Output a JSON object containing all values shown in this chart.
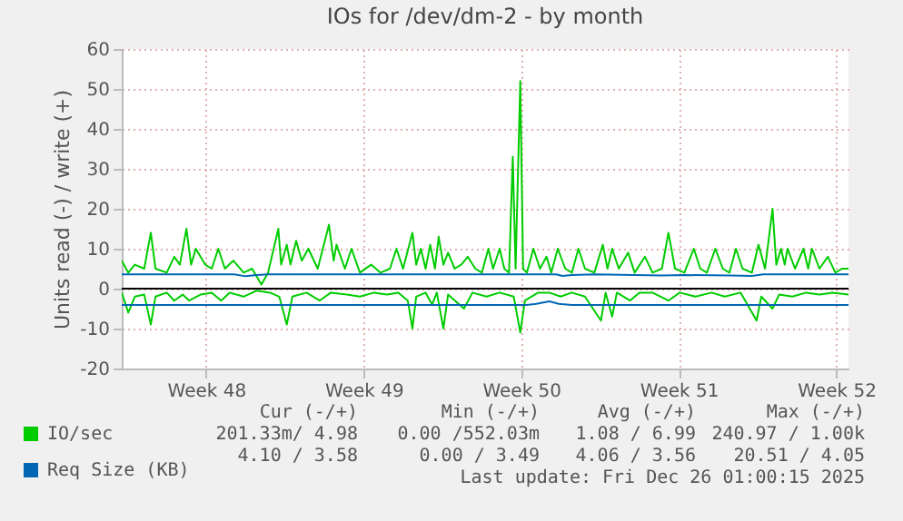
{
  "chart_data": {
    "type": "line",
    "title": "IOs for /dev/dm-2 - by month",
    "ylabel": "Units read (-) / write (+)",
    "xlim": [
      "2025-11-23T18:00",
      "2025-12-26T01:00"
    ],
    "xticks": [
      {
        "value": "2025-11-27T12:00",
        "label": "Week 48"
      },
      {
        "value": "2025-12-04T12:00",
        "label": "Week 49"
      },
      {
        "value": "2025-12-11T12:00",
        "label": "Week 50"
      },
      {
        "value": "2025-12-18T12:00",
        "label": "Week 51"
      },
      {
        "value": "2025-12-25T12:00",
        "label": "Week 52"
      }
    ],
    "ylim": [
      -20,
      60
    ],
    "yticks": [
      -20,
      -10,
      0,
      10,
      20,
      30,
      40,
      50,
      60
    ],
    "grid": true,
    "legend": "bottom left",
    "line_style": "solid",
    "series": [
      {
        "name": "IO/sec",
        "color": "#00cc00",
        "x": [
          "2025-11-23T18:00",
          "2025-11-24T01:00",
          "2025-11-24T08:00",
          "2025-11-24T18:00",
          "2025-11-25T01:00",
          "2025-11-25T06:00",
          "2025-11-25T18:00",
          "2025-11-26T02:00",
          "2025-11-26T08:00",
          "2025-11-26T15:00",
          "2025-11-26T20:00",
          "2025-11-27T01:00",
          "2025-11-27T11:00",
          "2025-11-27T18:00",
          "2025-11-28T01:00",
          "2025-11-28T08:00",
          "2025-11-28T17:00",
          "2025-11-29T04:00",
          "2025-11-29T13:00",
          "2025-11-29T23:00",
          "2025-11-30T06:00",
          "2025-11-30T17:00",
          "2025-11-30T20:00",
          "2025-12-01T02:00",
          "2025-12-01T06:00",
          "2025-12-01T12:00",
          "2025-12-01T18:00",
          "2025-12-02T01:00",
          "2025-12-02T11:00",
          "2025-12-02T23:00",
          "2025-12-03T04:00",
          "2025-12-03T07:00",
          "2025-12-03T16:00",
          "2025-12-03T23:00",
          "2025-12-04T08:00",
          "2025-12-04T20:00",
          "2025-12-05T06:00",
          "2025-12-05T16:00",
          "2025-12-05T23:00",
          "2025-12-06T06:00",
          "2025-12-06T16:00",
          "2025-12-06T20:00",
          "2025-12-07T01:00",
          "2025-12-07T06:00",
          "2025-12-07T11:00",
          "2025-12-07T16:00",
          "2025-12-07T20:00",
          "2025-12-08T01:00",
          "2025-12-08T06:00",
          "2025-12-08T13:00",
          "2025-12-08T20:00",
          "2025-12-09T03:00",
          "2025-12-09T11:00",
          "2025-12-09T18:00",
          "2025-12-10T01:00",
          "2025-12-10T06:00",
          "2025-12-10T13:00",
          "2025-12-10T18:00",
          "2025-12-10T23:00",
          "2025-12-11T03:00",
          "2025-12-11T06:00",
          "2025-12-11T11:00",
          "2025-12-11T14:00",
          "2025-12-11T18:00",
          "2025-12-12T01:00",
          "2025-12-12T08:00",
          "2025-12-12T15:00",
          "2025-12-12T20:00",
          "2025-12-13T03:00",
          "2025-12-13T11:00",
          "2025-12-13T18:00",
          "2025-12-14T01:00",
          "2025-12-14T08:00",
          "2025-12-14T18:00",
          "2025-12-15T03:00",
          "2025-12-15T08:00",
          "2025-12-15T13:00",
          "2025-12-15T20:00",
          "2025-12-16T06:00",
          "2025-12-16T13:00",
          "2025-12-17T00:00",
          "2025-12-17T08:00",
          "2025-12-17T18:00",
          "2025-12-18T01:00",
          "2025-12-18T08:00",
          "2025-12-18T18:00",
          "2025-12-19T04:00",
          "2025-12-19T11:00",
          "2025-12-19T18:00",
          "2025-12-20T03:00",
          "2025-12-20T11:00",
          "2025-12-20T18:00",
          "2025-12-21T01:00",
          "2025-12-21T08:00",
          "2025-12-21T18:00",
          "2025-12-22T01:00",
          "2025-12-22T08:00",
          "2025-12-22T16:00",
          "2025-12-22T20:00",
          "2025-12-23T01:00",
          "2025-12-23T05:00",
          "2025-12-23T08:00",
          "2025-12-23T16:00",
          "2025-12-24T01:00",
          "2025-12-24T06:00",
          "2025-12-24T10:00",
          "2025-12-24T18:00",
          "2025-12-25T03:00",
          "2025-12-25T11:00",
          "2025-12-25T18:00",
          "2025-12-26T01:00"
        ],
        "values": [
          7,
          4,
          6,
          5,
          14,
          5,
          4,
          8,
          6,
          15,
          6,
          10,
          6,
          5,
          10,
          5,
          7,
          4,
          5,
          1,
          4,
          15,
          6,
          11,
          6,
          12,
          7,
          10,
          5,
          16,
          7,
          11,
          5,
          10,
          4,
          6,
          4,
          5,
          10,
          5,
          14,
          6,
          10,
          5,
          11,
          5,
          13,
          6,
          9,
          5,
          6,
          8,
          5,
          4,
          10,
          5,
          10,
          5,
          4,
          33,
          5,
          52,
          5,
          4,
          10,
          5,
          8,
          4,
          10,
          5,
          4,
          10,
          5,
          4,
          11,
          5,
          10,
          5,
          9,
          4,
          8,
          4,
          5,
          14,
          5,
          4,
          10,
          5,
          4,
          10,
          5,
          4,
          10,
          5,
          4,
          11,
          5,
          20,
          6,
          10,
          6,
          10,
          5,
          10,
          5,
          10,
          5,
          8,
          4,
          5,
          5
        ]
      },
      {
        "color": "#00cc00",
        "x": [
          "2025-11-23T18:00",
          "2025-11-24T01:00",
          "2025-11-24T08:00",
          "2025-11-24T18:00",
          "2025-11-25T01:00",
          "2025-11-25T06:00",
          "2025-11-25T18:00",
          "2025-11-26T02:00",
          "2025-11-26T11:00",
          "2025-11-26T18:00",
          "2025-11-27T06:00",
          "2025-11-27T18:00",
          "2025-11-28T04:00",
          "2025-11-28T13:00",
          "2025-11-29T04:00",
          "2025-11-29T18:00",
          "2025-11-30T08:00",
          "2025-11-30T18:00",
          "2025-12-01T02:00",
          "2025-12-01T08:00",
          "2025-12-01T23:00",
          "2025-12-02T13:00",
          "2025-12-03T01:00",
          "2025-12-03T18:00",
          "2025-12-04T08:00",
          "2025-12-04T23:00",
          "2025-12-05T13:00",
          "2025-12-06T01:00",
          "2025-12-06T11:00",
          "2025-12-06T16:00",
          "2025-12-06T20:00",
          "2025-12-07T06:00",
          "2025-12-07T13:00",
          "2025-12-07T18:00",
          "2025-12-08T01:00",
          "2025-12-08T06:00",
          "2025-12-08T23:00",
          "2025-12-09T08:00",
          "2025-12-09T23:00",
          "2025-12-10T13:00",
          "2025-12-11T04:00",
          "2025-12-11T11:00",
          "2025-12-11T16:00",
          "2025-12-12T06:00",
          "2025-12-12T18:00",
          "2025-12-13T06:00",
          "2025-12-13T18:00",
          "2025-12-14T08:00",
          "2025-12-15T01:00",
          "2025-12-15T06:00",
          "2025-12-15T13:00",
          "2025-12-15T18:00",
          "2025-12-16T08:00",
          "2025-12-16T18:00",
          "2025-12-17T08:00",
          "2025-12-18T01:00",
          "2025-12-18T13:00",
          "2025-12-19T06:00",
          "2025-12-19T23:00",
          "2025-12-20T13:00",
          "2025-12-21T06:00",
          "2025-12-21T23:00",
          "2025-12-22T04:00",
          "2025-12-22T16:00",
          "2025-12-22T23:00",
          "2025-12-23T13:00",
          "2025-12-24T04:00",
          "2025-12-24T18:00",
          "2025-12-25T08:00",
          "2025-12-26T01:00"
        ],
        "values": [
          -1,
          -6,
          -2,
          -1.5,
          -9,
          -2,
          -1,
          -3,
          -1.5,
          -3,
          -1.5,
          -1,
          -3,
          -1,
          -2,
          -0.5,
          -1,
          -2,
          -9,
          -2,
          -1,
          -3,
          -1,
          -1.5,
          -2,
          -1,
          -1.5,
          -1,
          -3,
          -10,
          -2,
          -1,
          -4,
          -1,
          -10,
          -1.5,
          -5,
          -1,
          -2,
          -1,
          -2,
          -11,
          -3,
          -1,
          -1,
          -2,
          -1,
          -2,
          -8,
          -1,
          -7,
          -1,
          -3,
          -1,
          -1,
          -3,
          -1,
          -2,
          -1,
          -2,
          -1,
          -8,
          -2,
          -5,
          -1.5,
          -2,
          -1,
          -1.5,
          -1,
          -1.5
        ]
      },
      {
        "name": "Req Size (KB)",
        "color": "#0066b3",
        "x": [
          "2025-11-23T18:00",
          "2025-11-28T18:00",
          "2025-11-29T06:00",
          "2025-11-29T18:00",
          "2025-11-30T06:00",
          "2025-12-06T18:00",
          "2025-12-13T01:00",
          "2025-12-13T08:00",
          "2025-12-13T18:00",
          "2025-12-14T18:00",
          "2025-12-17T18:00",
          "2025-12-18T18:00",
          "2025-12-20T18:00",
          "2025-12-21T18:00",
          "2025-12-22T06:00",
          "2025-12-26T01:00"
        ],
        "values": [
          3.6,
          3.6,
          3.1,
          3.4,
          3.6,
          3.6,
          3.6,
          3.2,
          3.4,
          3.6,
          3.3,
          3.4,
          3.3,
          3.2,
          3.6,
          3.6
        ]
      },
      {
        "color": "#0066b3",
        "x": [
          "2025-11-23T18:00",
          "2025-12-11T18:00",
          "2025-12-12T04:00",
          "2025-12-12T18:00",
          "2025-12-13T04:00",
          "2025-12-13T18:00",
          "2025-12-26T01:00"
        ],
        "values": [
          -4.1,
          -4.1,
          -3.8,
          -3.2,
          -3.8,
          -4.1,
          -4.1
        ]
      }
    ],
    "ref_lines": [
      {
        "axis": "y",
        "value": 0,
        "color": "#000000"
      }
    ],
    "annotations": [
      "Cur (-/+)",
      "Min (-/+)",
      "Avg (-/+)",
      "Max (-/+)",
      "201.33m/ 4.98",
      "0.00 /552.03m",
      "1.08 / 6.99",
      "240.97 / 1.00k",
      "4.10 / 3.58",
      "0.00 / 3.49",
      "4.06 / 3.56",
      "20.51 / 4.05",
      "Last update: Fri Dec 26 01:00:15 2025"
    ]
  }
}
